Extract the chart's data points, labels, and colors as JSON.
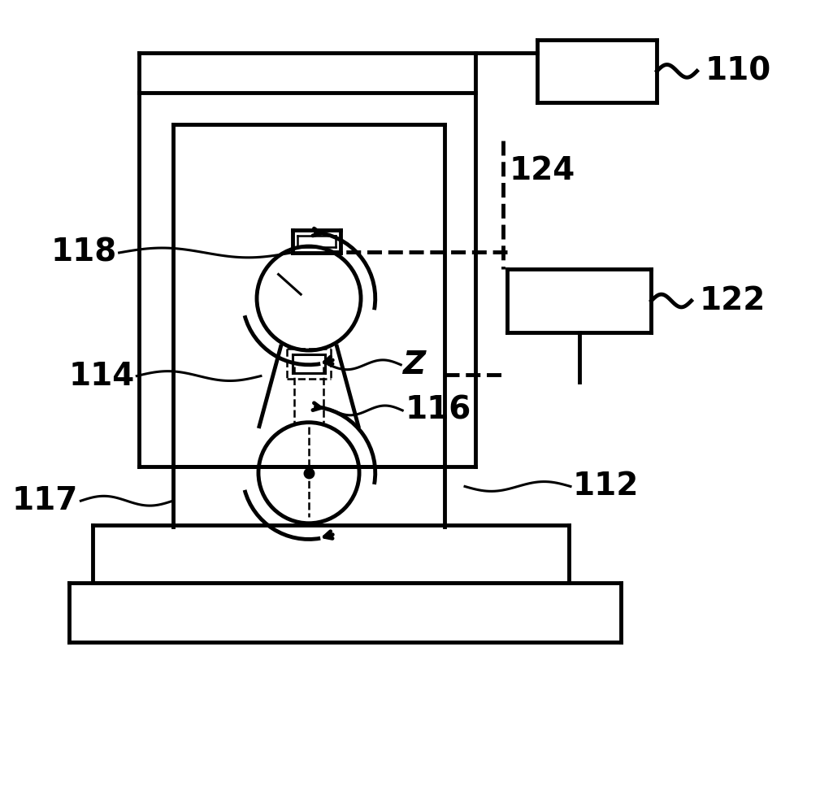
{
  "bg_color": "#ffffff",
  "lw": 3.5,
  "lw2": 2.2,
  "lw3": 1.8,
  "label_fontsize": 28,
  "label_fontweight": "bold"
}
